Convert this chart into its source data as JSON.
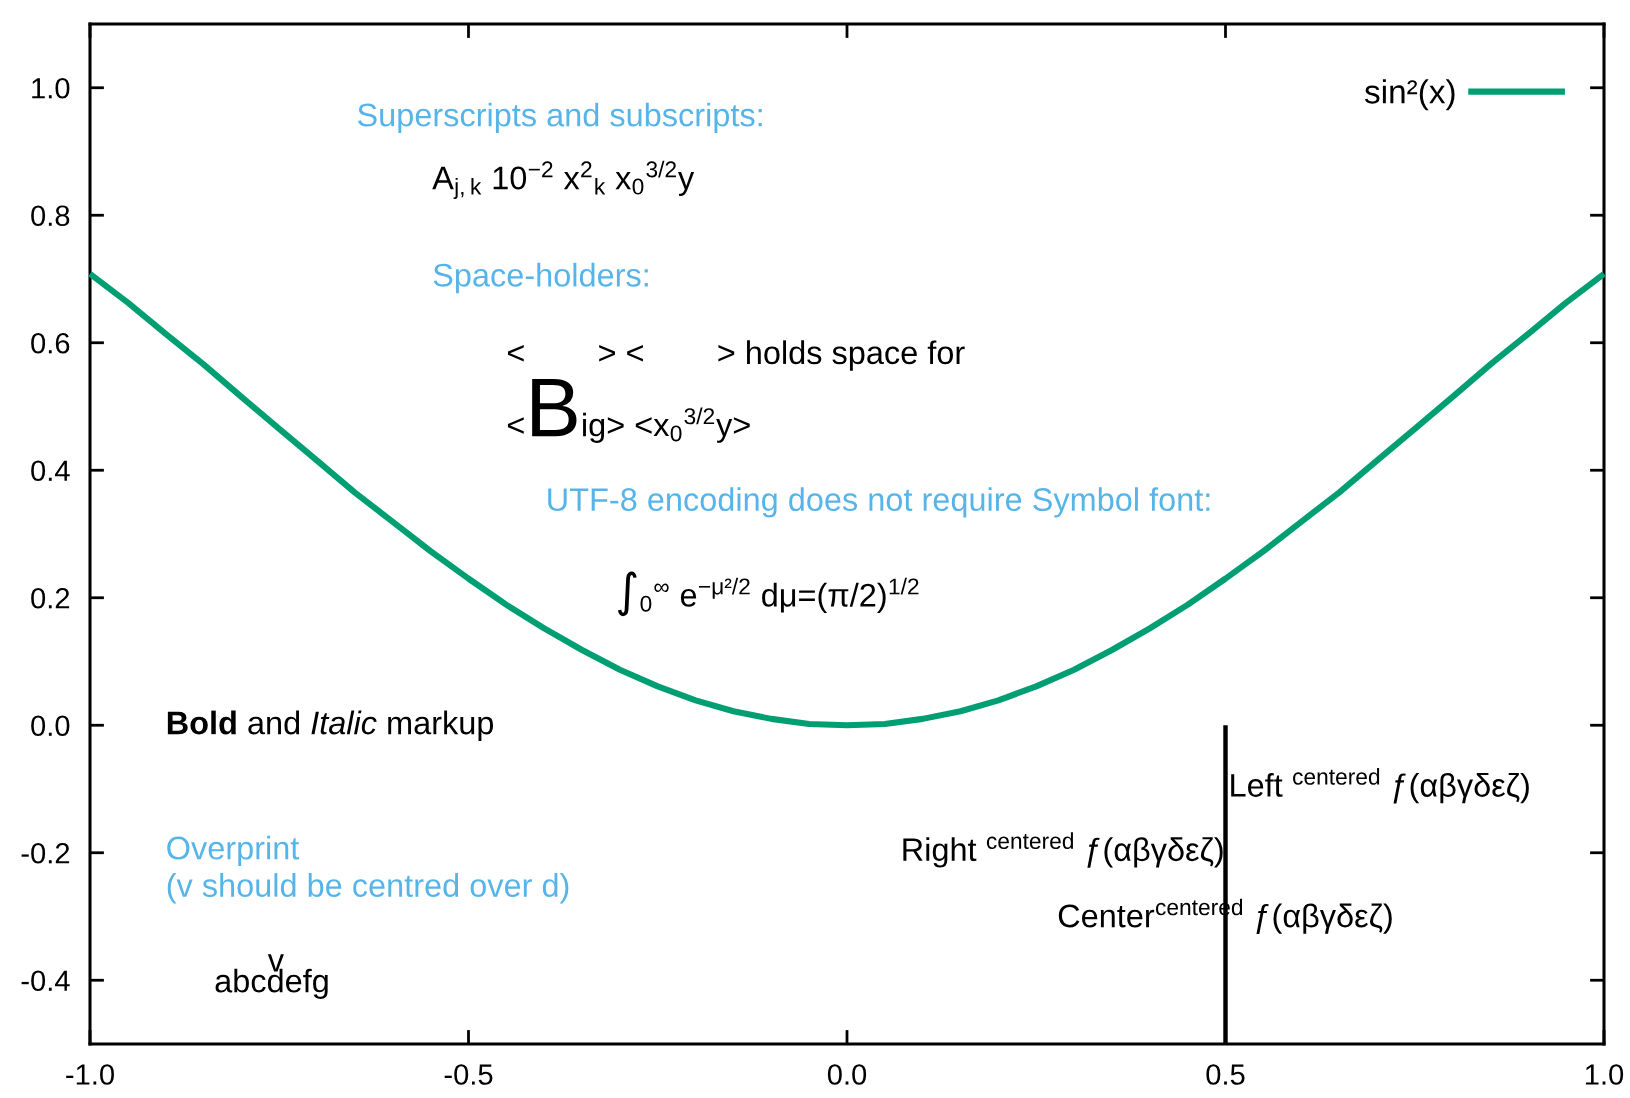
{
  "chart_data": {
    "type": "line",
    "series": [
      {
        "name": "sin²(x)",
        "color": "#009e73",
        "x": [
          -1.0,
          -0.95,
          -0.9,
          -0.85,
          -0.8,
          -0.75,
          -0.7,
          -0.65,
          -0.6,
          -0.55,
          -0.5,
          -0.45,
          -0.4,
          -0.35,
          -0.3,
          -0.25,
          -0.2,
          -0.15,
          -0.1,
          -0.05,
          0.0,
          0.05,
          0.1,
          0.15,
          0.2,
          0.25,
          0.3,
          0.35,
          0.4,
          0.45,
          0.5,
          0.55,
          0.6,
          0.65,
          0.7,
          0.75,
          0.8,
          0.85,
          0.9,
          0.95,
          1.0
        ],
        "values": [
          0.708,
          0.663,
          0.614,
          0.566,
          0.515,
          0.465,
          0.415,
          0.365,
          0.319,
          0.273,
          0.23,
          0.189,
          0.152,
          0.118,
          0.087,
          0.061,
          0.039,
          0.022,
          0.01,
          0.002,
          0.0,
          0.002,
          0.01,
          0.022,
          0.039,
          0.061,
          0.087,
          0.118,
          0.152,
          0.189,
          0.23,
          0.273,
          0.319,
          0.365,
          0.415,
          0.465,
          0.515,
          0.566,
          0.614,
          0.663,
          0.708
        ]
      },
      {
        "color": "#000000",
        "x": [
          0.5,
          0.5
        ],
        "values": [
          -0.5,
          0.0
        ]
      }
    ],
    "xlim": [
      -1.0,
      1.0
    ],
    "ylim": [
      -0.5,
      1.1
    ],
    "xticks": [
      {
        "value": -1,
        "label": "-1.0"
      },
      {
        "value": -0.5,
        "label": "-0.5"
      },
      {
        "value": 0,
        "label": "0.0"
      },
      {
        "value": 0.5,
        "label": "0.5"
      },
      {
        "value": 1,
        "label": "1.0"
      }
    ],
    "yticks": [
      {
        "value": -0.4,
        "label": "-0.4"
      },
      {
        "value": -0.2,
        "label": "-0.2"
      },
      {
        "value": 0,
        "label": "0.0"
      },
      {
        "value": 0.2,
        "label": "0.2"
      },
      {
        "value": 0.4,
        "label": "0.4"
      },
      {
        "value": 0.6,
        "label": "0.6"
      },
      {
        "value": 0.8,
        "label": "0.8"
      },
      {
        "value": 1,
        "label": "1.0"
      }
    ],
    "legend": "top right",
    "line_style": "solid",
    "annotations": [
      "Superscripts and subscripts:",
      "A$_{j,k}$ 10$^{−2}$ x$^{2}$$_{k}$ x$_{0}$$^{3/2}$y",
      "Space-holders:",
      "<        > <        > holds space for",
      "<Big> <x$_{0}$$^{3/2}$y>",
      "UTF-8 encoding does not require Symbol font:",
      "∫$_{0}$$^{∞}$ e$^{−μ²/2}$ dμ=(π/2)$^{1/2}$",
      "Bold and Italic markup",
      "Left $^{centered}$ ƒ(αβγδεζ)",
      "Right $^{centered}$ ƒ(αβγδεζ)",
      "Overprint\n(v should be centred over d)",
      "Center$^{centered}$ ƒ(αβγδεζ)",
      "abcdefg",
      "v"
    ]
  }
}
